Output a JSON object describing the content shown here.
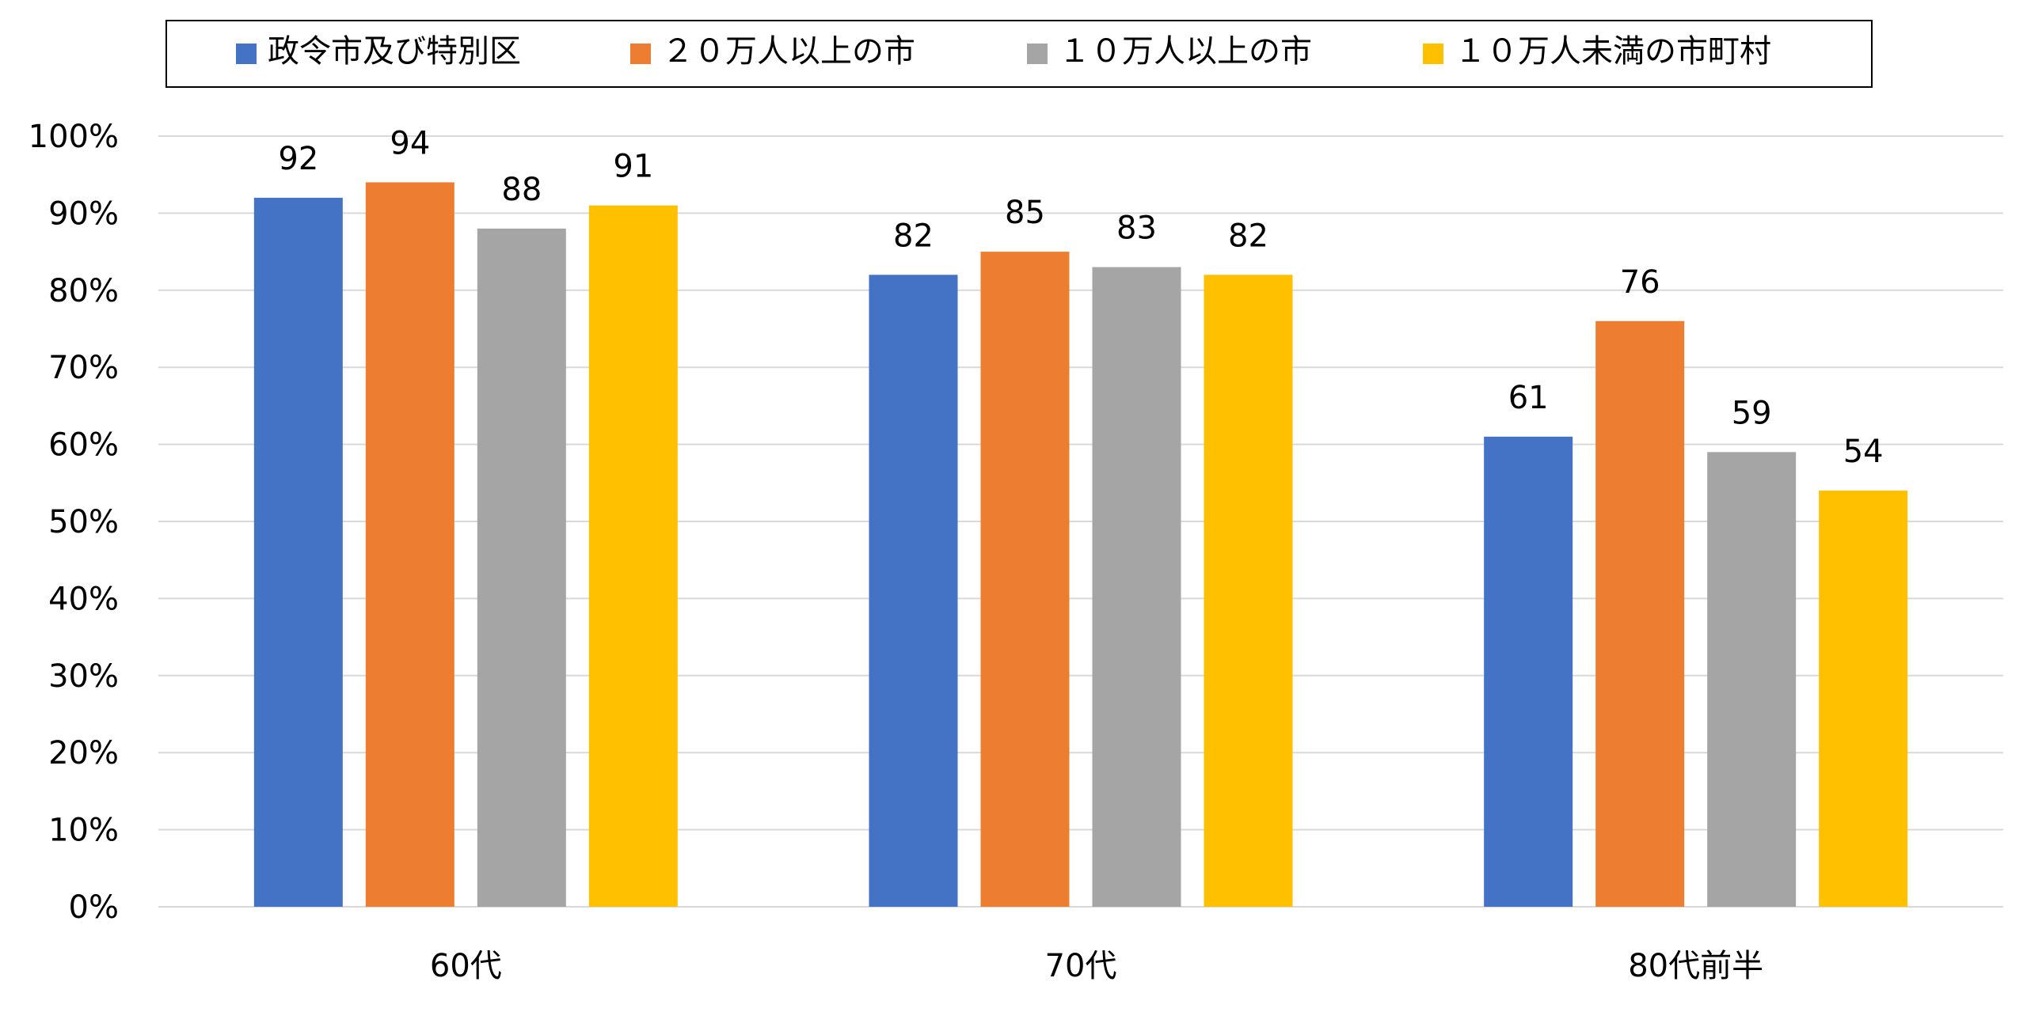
{
  "chart_data": {
    "type": "bar",
    "title": "",
    "xlabel": "",
    "ylabel": "",
    "categories": [
      "60代",
      "70代",
      "80代前半"
    ],
    "series": [
      {
        "name": "政令市及び特別区",
        "color": "#4472C4",
        "values": [
          92,
          82,
          61
        ]
      },
      {
        "name": "２０万人以上の市",
        "color": "#ED7D31",
        "values": [
          94,
          85,
          76
        ]
      },
      {
        "name": "１０万人以上の市",
        "color": "#A5A5A5",
        "values": [
          88,
          83,
          59
        ]
      },
      {
        "name": "１０万人未満の市町村",
        "color": "#FFC000",
        "values": [
          91,
          82,
          54
        ]
      }
    ],
    "ylim": [
      0,
      100
    ],
    "yticks": [
      0,
      10,
      20,
      30,
      40,
      50,
      60,
      70,
      80,
      90,
      100
    ],
    "ytick_labels": [
      "0%",
      "10%",
      "20%",
      "30%",
      "40%",
      "50%",
      "60%",
      "70%",
      "80%",
      "90%",
      "100%"
    ],
    "grid": true,
    "legend_position": "top",
    "data_labels": true
  }
}
